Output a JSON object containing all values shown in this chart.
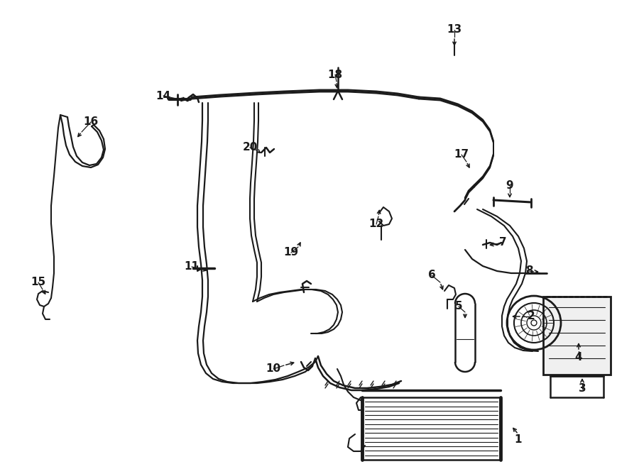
{
  "bg_color": "#ffffff",
  "line_color": "#1a1a1a",
  "fig_width": 9.0,
  "fig_height": 6.61,
  "label_arrows": [
    [
      "1",
      640,
      590,
      720,
      610,
      740,
      598
    ],
    [
      "2",
      750,
      445,
      730,
      445,
      712,
      445
    ],
    [
      "3",
      810,
      545,
      810,
      520,
      810,
      490
    ],
    [
      "4",
      805,
      500,
      805,
      490,
      805,
      478
    ],
    [
      "5",
      645,
      430,
      660,
      448,
      660,
      460
    ],
    [
      "6",
      610,
      390,
      628,
      400,
      628,
      413
    ],
    [
      "7",
      710,
      345,
      698,
      345,
      685,
      345
    ],
    [
      "8",
      740,
      385,
      755,
      385,
      768,
      385
    ],
    [
      "9",
      720,
      265,
      720,
      282,
      720,
      295
    ],
    [
      "10",
      390,
      518,
      415,
      512,
      430,
      508
    ],
    [
      "11",
      275,
      375,
      298,
      378,
      310,
      382
    ],
    [
      "12",
      537,
      318,
      537,
      305,
      537,
      292
    ],
    [
      "13",
      640,
      45,
      640,
      60,
      640,
      75
    ],
    [
      "14",
      235,
      133,
      270,
      138,
      285,
      142
    ],
    [
      "15",
      58,
      398,
      72,
      415,
      80,
      422
    ],
    [
      "16",
      130,
      175,
      112,
      192,
      105,
      198
    ],
    [
      "17",
      652,
      220,
      660,
      232,
      668,
      245
    ],
    [
      "18",
      476,
      108,
      476,
      128,
      476,
      140
    ],
    [
      "19",
      416,
      358,
      426,
      345,
      430,
      338
    ],
    [
      "20",
      358,
      210,
      370,
      215,
      378,
      220
    ]
  ]
}
